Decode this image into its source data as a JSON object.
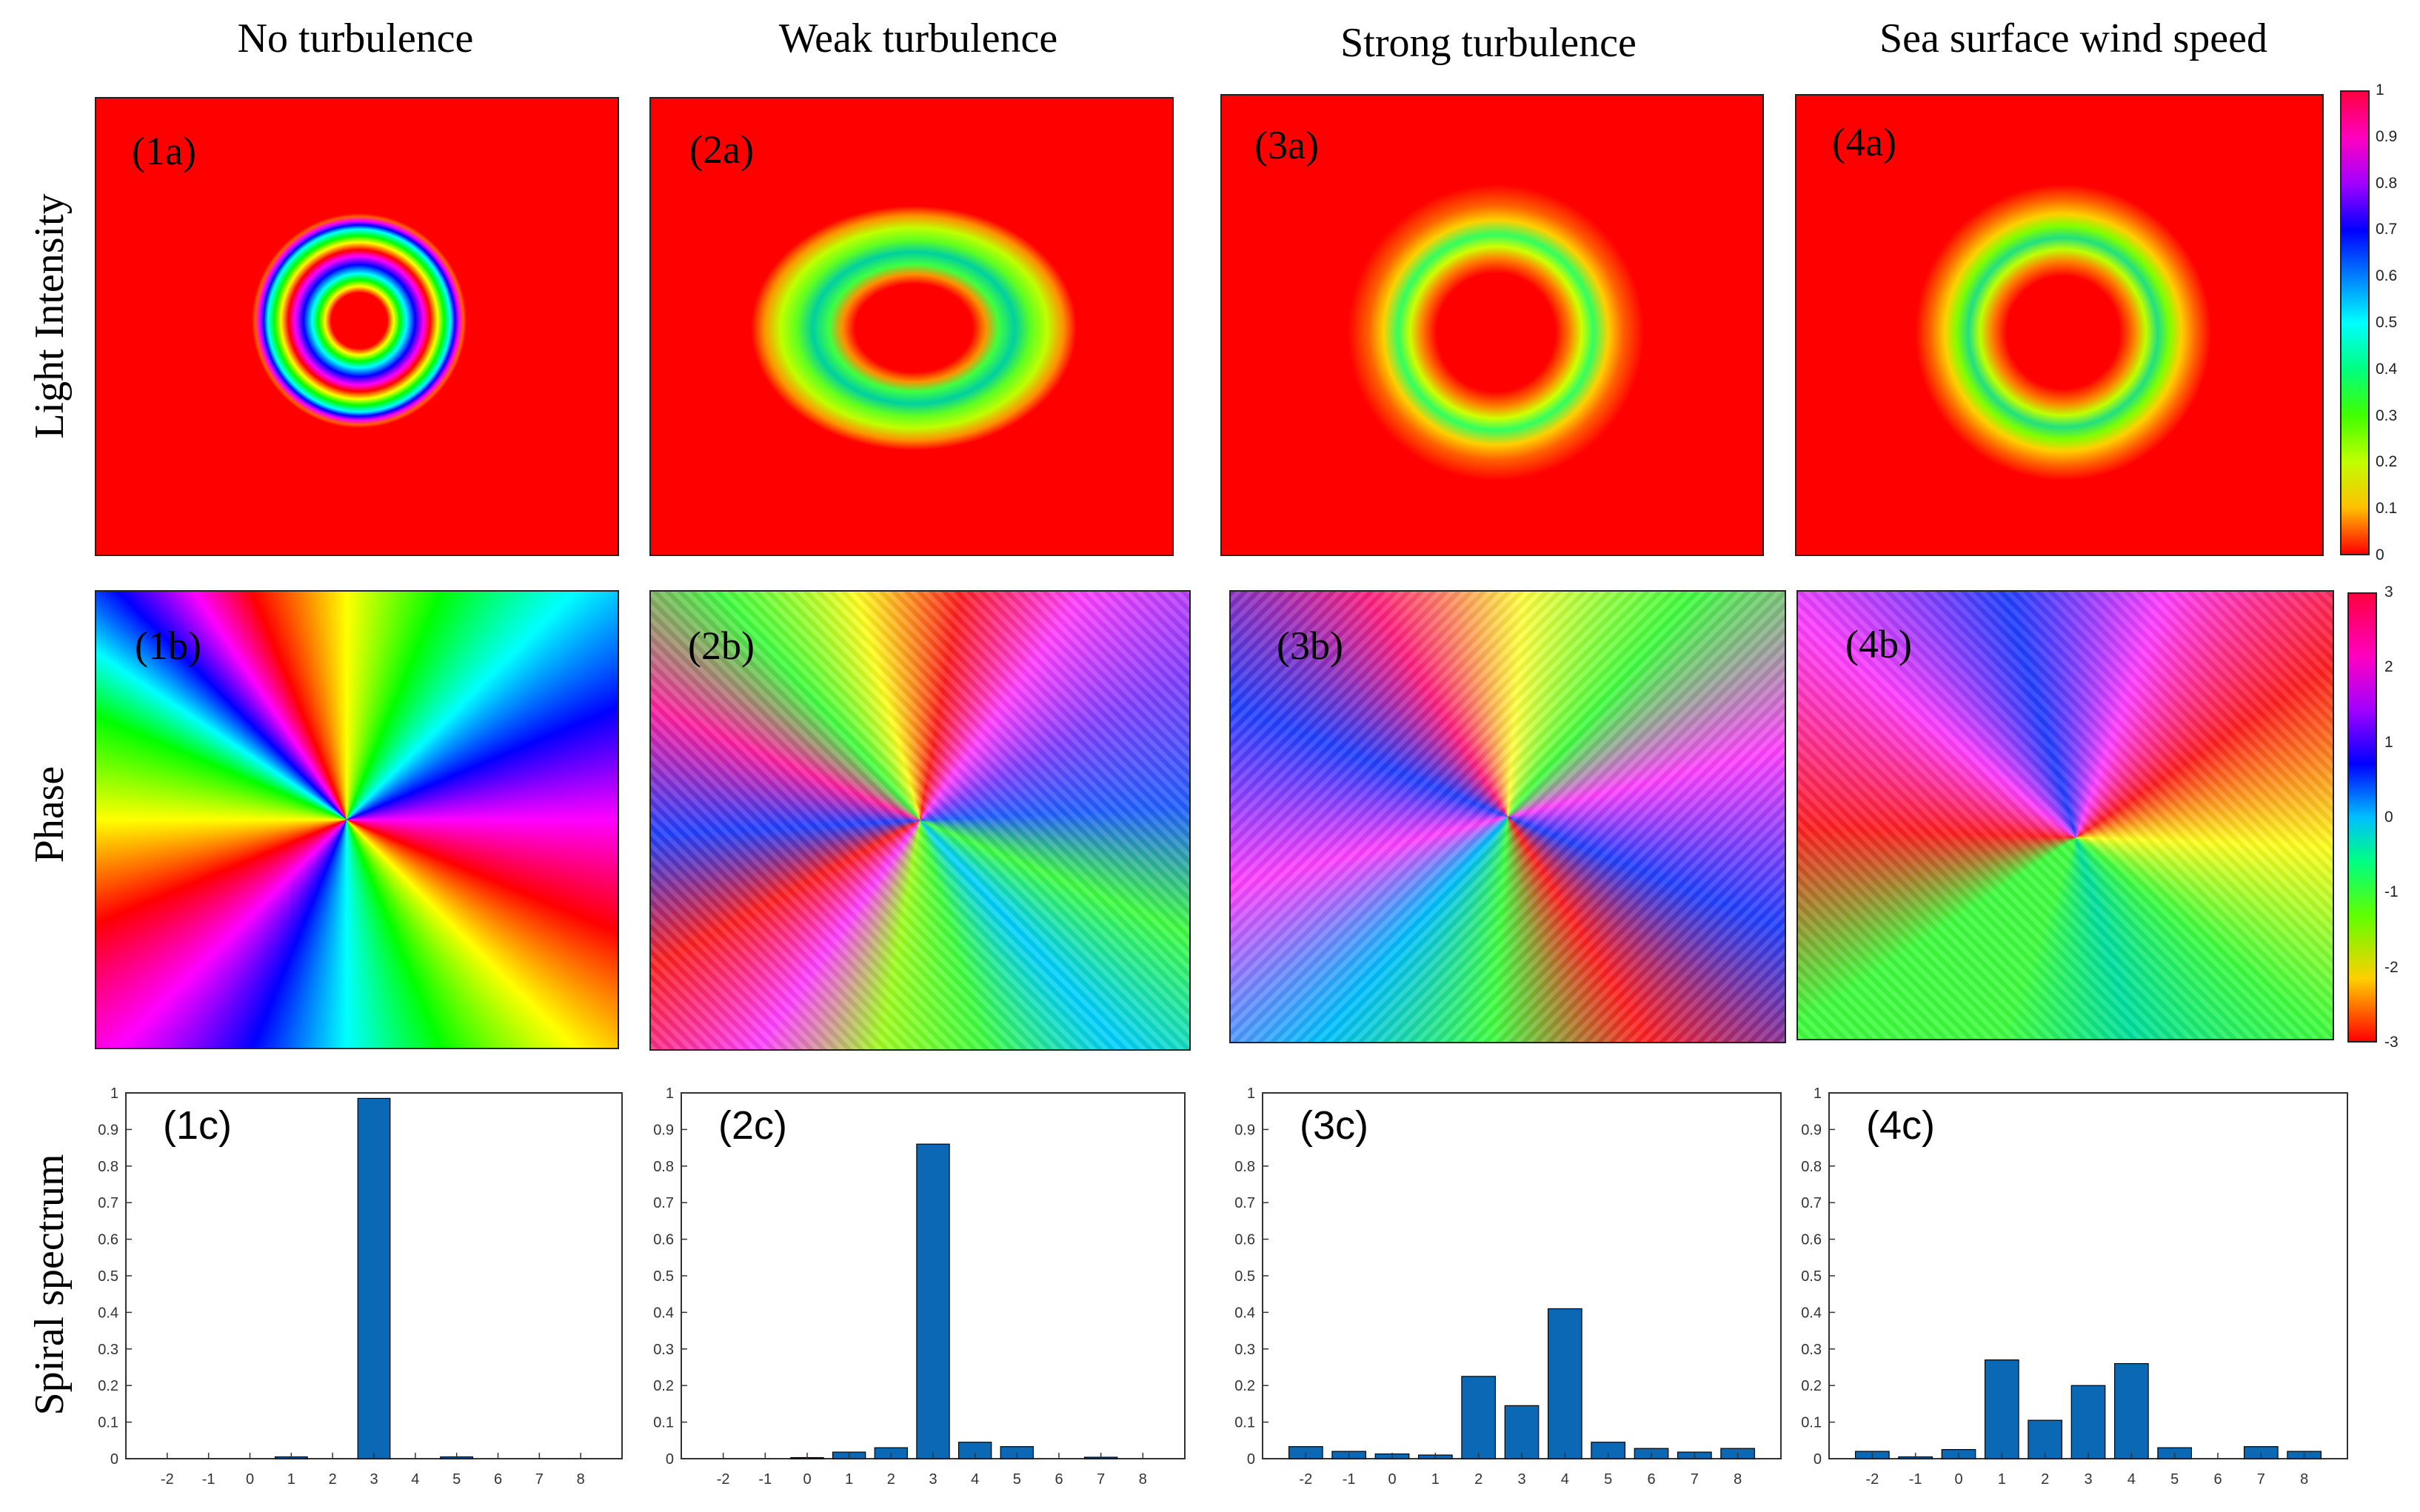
{
  "columns": [
    "No turbulence",
    "Weak turbulence",
    "Strong turbulence",
    "Sea surface wind speed"
  ],
  "rows": [
    "Light Intensity",
    "Phase",
    "Spiral spectrum"
  ],
  "panel_labels": {
    "intensity": [
      "(1a)",
      "(2a)",
      "(3a)",
      "(4a)"
    ],
    "phase": [
      "(1b)",
      "(2b)",
      "(3b)",
      "(4b)"
    ],
    "spectrum": [
      "(1c)",
      "(2c)",
      "(3c)",
      "(4c)"
    ]
  },
  "colorbars": {
    "intensity": {
      "ticks": [
        "1",
        "0.9",
        "0.8",
        "0.7",
        "0.6",
        "0.5",
        "0.4",
        "0.3",
        "0.2",
        "0.1",
        "0"
      ]
    },
    "phase": {
      "ticks": [
        "3",
        "2",
        "1",
        "0",
        "-1",
        "-2",
        "-3"
      ]
    }
  },
  "chart_data": [
    {
      "type": "bar",
      "title": "(1c)",
      "categories": [
        "-2",
        "-1",
        "0",
        "1",
        "2",
        "3",
        "4",
        "5",
        "6",
        "7",
        "8"
      ],
      "values": [
        0,
        0,
        0,
        0.005,
        0,
        0.985,
        0,
        0.005,
        0,
        0,
        0
      ],
      "ylabel": "Spiral spectrum",
      "ylim": [
        0,
        1
      ],
      "yticks": [
        "0",
        "0.1",
        "0.2",
        "0.3",
        "0.4",
        "0.5",
        "0.6",
        "0.7",
        "0.8",
        "0.9",
        "1"
      ],
      "color": "#0b68b5",
      "grid": false
    },
    {
      "type": "bar",
      "title": "(2c)",
      "categories": [
        "-2",
        "-1",
        "0",
        "1",
        "2",
        "3",
        "4",
        "5",
        "6",
        "7",
        "8"
      ],
      "values": [
        0,
        0,
        0.003,
        0.018,
        0.03,
        0.86,
        0.045,
        0.033,
        0,
        0.004,
        0
      ],
      "ylim": [
        0,
        1
      ],
      "yticks": [
        "0",
        "0.1",
        "0.2",
        "0.3",
        "0.4",
        "0.5",
        "0.6",
        "0.7",
        "0.8",
        "0.9",
        "1"
      ],
      "color": "#0b68b5",
      "grid": false
    },
    {
      "type": "bar",
      "title": "(3c)",
      "categories": [
        "-2",
        "-1",
        "0",
        "1",
        "2",
        "3",
        "4",
        "5",
        "6",
        "7",
        "8"
      ],
      "values": [
        0.033,
        0.02,
        0.013,
        0.01,
        0.225,
        0.145,
        0.41,
        0.045,
        0.028,
        0.018,
        0.028
      ],
      "ylim": [
        0,
        1
      ],
      "yticks": [
        "0",
        "0.1",
        "0.2",
        "0.3",
        "0.4",
        "0.5",
        "0.6",
        "0.7",
        "0.8",
        "0.9",
        "1"
      ],
      "color": "#0b68b5",
      "grid": false
    },
    {
      "type": "bar",
      "title": "(4c)",
      "categories": [
        "-2",
        "-1",
        "0",
        "1",
        "2",
        "3",
        "4",
        "5",
        "6",
        "7",
        "8"
      ],
      "values": [
        0.02,
        0.005,
        0.025,
        0.27,
        0.105,
        0.2,
        0.26,
        0.03,
        0,
        0.033,
        0.02
      ],
      "ylim": [
        0,
        1
      ],
      "yticks": [
        "0",
        "0.1",
        "0.2",
        "0.3",
        "0.4",
        "0.5",
        "0.6",
        "0.7",
        "0.8",
        "0.9",
        "1"
      ],
      "color": "#0b68b5",
      "grid": false
    }
  ]
}
